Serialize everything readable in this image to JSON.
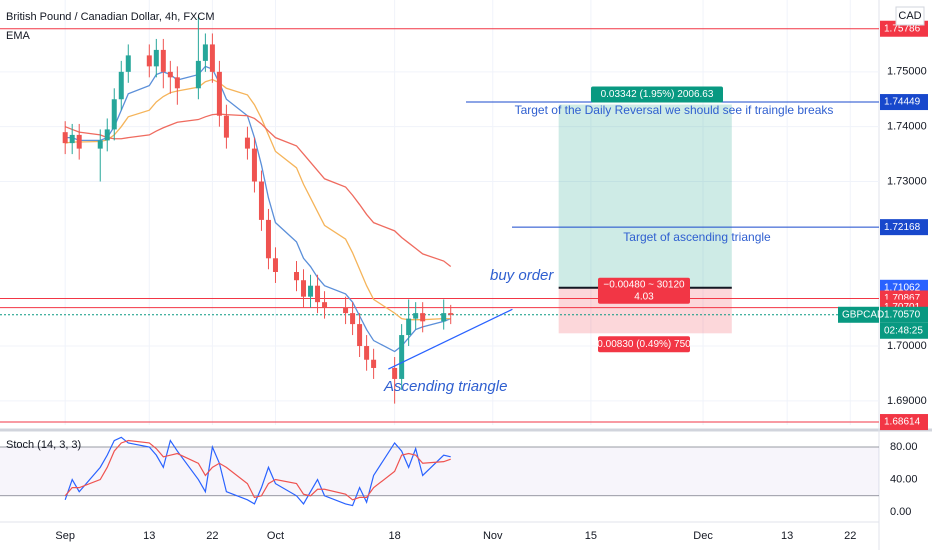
{
  "chart_data": {
    "type": "candlestick",
    "title": "British Pound / Canadian Dollar, 4h, FXCM",
    "indicator_label": "EMA",
    "currency": "CAD",
    "symbol": "GBPCAD",
    "countdown": "02:48:25",
    "up_color": "#26a69a",
    "down_color": "#ef5350",
    "x": [
      1,
      2,
      3,
      6,
      7,
      8,
      9,
      10,
      13,
      14,
      15,
      16,
      17,
      20,
      21,
      22,
      23,
      24,
      27,
      28,
      29,
      30,
      31,
      34,
      35,
      36,
      37,
      38,
      41,
      42,
      43,
      44,
      45,
      48,
      49,
      50,
      51,
      52,
      55,
      56
    ],
    "open": [
      1.739,
      1.737,
      1.7385,
      1.736,
      1.7375,
      1.7395,
      1.745,
      1.75,
      1.753,
      1.751,
      1.754,
      1.75,
      1.749,
      1.747,
      1.752,
      1.755,
      1.75,
      1.742,
      1.738,
      1.736,
      1.73,
      1.723,
      1.716,
      1.7135,
      1.712,
      1.709,
      1.711,
      1.708,
      1.707,
      1.706,
      1.704,
      1.7,
      1.6975,
      1.696,
      1.694,
      1.702,
      1.705,
      1.706,
      1.7045,
      1.706
    ],
    "high": [
      1.741,
      1.7405,
      1.7405,
      1.7395,
      1.7415,
      1.747,
      1.752,
      1.755,
      1.755,
      1.756,
      1.756,
      1.752,
      1.751,
      1.76,
      1.757,
      1.757,
      1.752,
      1.744,
      1.74,
      1.738,
      1.732,
      1.725,
      1.718,
      1.7155,
      1.714,
      1.713,
      1.713,
      1.71,
      1.709,
      1.708,
      1.706,
      1.702,
      1.6995,
      1.698,
      1.704,
      1.7085,
      1.708,
      1.708,
      1.7085,
      1.7075
    ],
    "low": [
      1.735,
      1.735,
      1.734,
      1.73,
      1.7355,
      1.7375,
      1.743,
      1.748,
      1.749,
      1.749,
      1.747,
      1.746,
      1.744,
      1.745,
      1.75,
      1.748,
      1.74,
      1.736,
      1.734,
      1.728,
      1.721,
      1.714,
      1.7115,
      1.71,
      1.707,
      1.707,
      1.706,
      1.705,
      1.704,
      1.702,
      1.698,
      1.6955,
      1.694,
      1.6895,
      1.692,
      1.7,
      1.703,
      1.7025,
      1.703,
      1.704
    ],
    "close": [
      1.737,
      1.7385,
      1.736,
      1.7375,
      1.7395,
      1.745,
      1.75,
      1.753,
      1.751,
      1.754,
      1.75,
      1.749,
      1.747,
      1.752,
      1.755,
      1.75,
      1.742,
      1.738,
      1.736,
      1.73,
      1.723,
      1.716,
      1.7135,
      1.712,
      1.709,
      1.711,
      1.708,
      1.707,
      1.706,
      1.704,
      1.7,
      1.6975,
      1.696,
      1.694,
      1.702,
      1.705,
      1.706,
      1.7045,
      1.706,
      1.7057
    ],
    "overlays": [
      {
        "color": "#5b8fd9",
        "values": [
          1.738,
          1.738,
          1.7375,
          1.7375,
          1.738,
          1.74,
          1.743,
          1.746,
          1.7475,
          1.7495,
          1.75,
          1.7495,
          1.7485,
          1.7495,
          1.751,
          1.7505,
          1.748,
          1.745,
          1.742,
          1.738,
          1.733,
          1.727,
          1.7225,
          1.719,
          1.716,
          1.7145,
          1.7125,
          1.711,
          1.7095,
          1.708,
          1.7055,
          1.703,
          1.701,
          1.699,
          1.7,
          1.7015,
          1.703,
          1.7035,
          1.7045,
          1.705
        ]
      },
      {
        "color": "#f5b45a",
        "values": [
          1.737,
          1.7372,
          1.7372,
          1.7373,
          1.7376,
          1.7385,
          1.74,
          1.7418,
          1.743,
          1.7445,
          1.7455,
          1.7462,
          1.7465,
          1.7472,
          1.7482,
          1.7486,
          1.748,
          1.747,
          1.7458,
          1.744,
          1.7415,
          1.7385,
          1.7355,
          1.7325,
          1.7295,
          1.727,
          1.7245,
          1.722,
          1.7195,
          1.717,
          1.714,
          1.711,
          1.7085,
          1.706,
          1.705,
          1.7048,
          1.7048,
          1.7048,
          1.705,
          1.705
        ]
      },
      {
        "color": "#ef6b5f",
        "values": [
          1.74,
          1.7395,
          1.739,
          1.7385,
          1.738,
          1.7378,
          1.7378,
          1.738,
          1.7385,
          1.7392,
          1.7398,
          1.7403,
          1.7408,
          1.7413,
          1.7418,
          1.7422,
          1.7423,
          1.7422,
          1.742,
          1.7415,
          1.7405,
          1.7392,
          1.738,
          1.7365,
          1.735,
          1.7335,
          1.732,
          1.7305,
          1.729,
          1.7275,
          1.7258,
          1.724,
          1.7225,
          1.721,
          1.7198,
          1.7188,
          1.7178,
          1.7168,
          1.7155,
          1.7145
        ]
      }
    ],
    "xlim": [
      -8.3,
      117.1
    ],
    "xticks": [
      {
        "value": 1,
        "label": "Sep"
      },
      13,
      22,
      {
        "value": 31,
        "label": "Oct"
      },
      {
        "value": 48,
        "label": "18"
      },
      {
        "value": 62,
        "label": "Nov"
      },
      {
        "value": 76,
        "label": "15"
      },
      {
        "value": 92,
        "label": "Dec"
      },
      {
        "value": 104,
        "label": "13"
      },
      {
        "value": 113,
        "label": "22"
      }
    ],
    "ylim": [
      1.6856,
      1.7631
    ],
    "yticks": [
      {
        "value": 1.75,
        "label": "1.75000"
      },
      {
        "value": 1.74,
        "label": "1.74000"
      },
      {
        "value": 1.73,
        "label": "1.73000"
      },
      {
        "value": 1.7,
        "label": "1.70000"
      },
      {
        "value": 1.69,
        "label": "1.69000"
      }
    ],
    "levels": [
      {
        "value": 1.75786,
        "label": "1.75786",
        "color": "#f23645"
      },
      {
        "value": 1.74449,
        "label": "1.74449",
        "color": "#1848cc"
      },
      {
        "value": 1.72168,
        "label": "1.72168",
        "color": "#1848cc"
      },
      {
        "value": 1.71062,
        "label": "1.71062",
        "color": "#2962ff"
      },
      {
        "value": 1.70867,
        "label": "1.70867",
        "color": "#f23645"
      },
      {
        "value": 1.70701,
        "label": "1.70701",
        "color": "#f23645"
      },
      {
        "value": 1.7057,
        "label": "1.70570",
        "color": "#089981"
      },
      {
        "value": 1.68614,
        "label": "1.68614",
        "color": "#f23645"
      }
    ],
    "position": {
      "x": [
        71.4,
        96.1
      ],
      "entry": 1.71062,
      "target": 1.74404,
      "stop": 1.70232,
      "target_label": "0.03342 (1.95%) 2006.63",
      "center_label": "−0.00480 ~ 30120",
      "center_sub": "4.03",
      "stop_label": "0.00830 (0.49%) 750"
    },
    "trendline": {
      "x": [
        47.1,
        64.8
      ],
      "values": [
        1.6958,
        1.7067
      ]
    },
    "annotations": [
      "Target of the Daily Reversal we should see if traingle breaks",
      "Target of ascending triangle",
      "buy order",
      "Ascending triangle"
    ],
    "stoch": {
      "label": "Stoch (14, 3, 3)",
      "ylim": [
        -9.8,
        94.8
      ],
      "yticks": [
        {
          "value": 80,
          "label": "80.00"
        },
        {
          "value": 40,
          "label": "40.00"
        },
        {
          "value": 0,
          "label": "0.00"
        }
      ],
      "bands": [
        80,
        20
      ],
      "series": [
        {
          "color": "#2962ff",
          "values": [
            15,
            40,
            25,
            55,
            70,
            88,
            92,
            85,
            80,
            70,
            55,
            88,
            75,
            40,
            25,
            80,
            60,
            25,
            15,
            10,
            30,
            55,
            35,
            20,
            10,
            25,
            40,
            20,
            10,
            8,
            30,
            12,
            45,
            85,
            75,
            55,
            78,
            45,
            70,
            68
          ]
        },
        {
          "color": "#ef5350",
          "values": [
            20,
            30,
            30,
            40,
            55,
            75,
            85,
            88,
            85,
            78,
            68,
            70,
            72,
            60,
            45,
            55,
            60,
            55,
            35,
            18,
            20,
            35,
            40,
            35,
            22,
            20,
            28,
            28,
            22,
            15,
            18,
            18,
            30,
            50,
            70,
            72,
            70,
            60,
            62,
            65
          ]
        }
      ]
    }
  }
}
